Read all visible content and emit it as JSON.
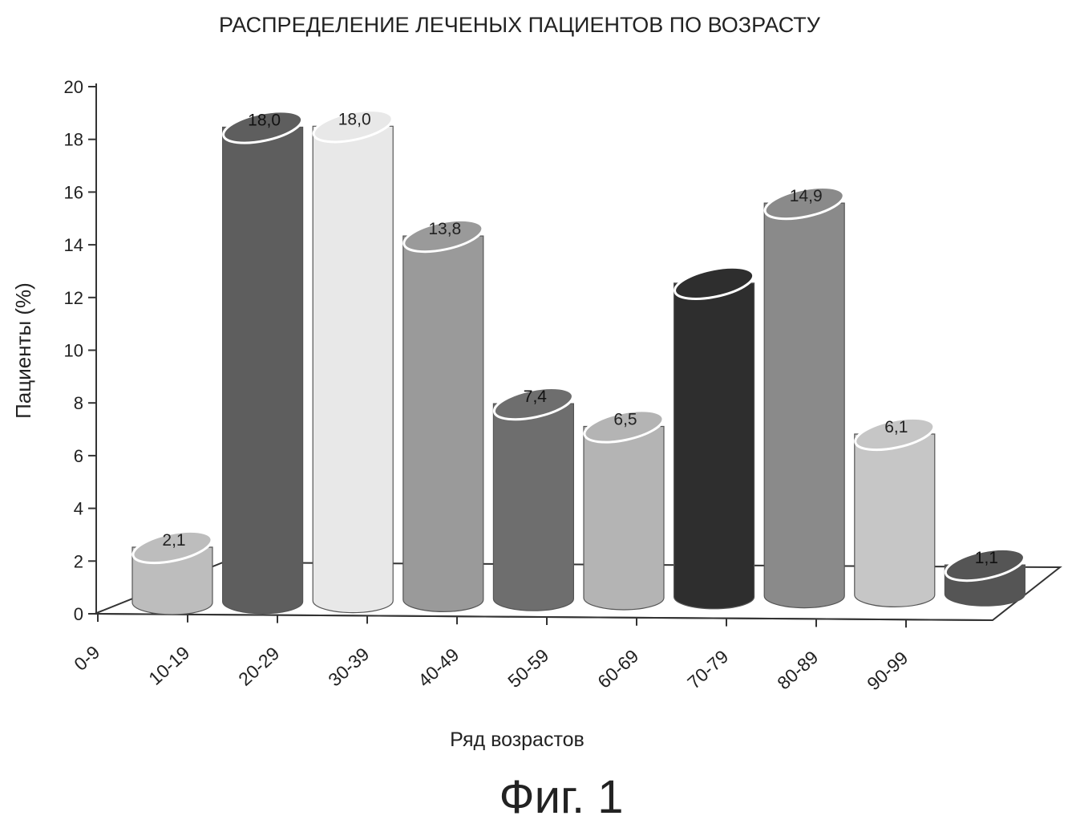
{
  "chart_data": {
    "type": "bar",
    "style": "3d-cylinder",
    "title": "РАСПРЕДЕЛЕНИЕ ЛЕЧЕНЫХ ПАЦИЕНТОВ ПО ВОЗРАСТУ",
    "xlabel": "Ряд возрастов",
    "ylabel": "Пациенты (%)",
    "ylim": [
      0,
      20
    ],
    "yticks": [
      0,
      2,
      4,
      6,
      8,
      10,
      12,
      14,
      16,
      18,
      20
    ],
    "categories": [
      "0-9",
      "10-19",
      "20-29",
      "30-39",
      "40-49",
      "50-59",
      "60-69",
      "70-79",
      "80-89",
      "90-99"
    ],
    "values": [
      2.1,
      18.0,
      18.0,
      13.8,
      7.4,
      6.5,
      11.9,
      14.9,
      6.1,
      1.1
    ],
    "value_labels": [
      "2,1",
      "18,0",
      "18,0",
      "13,8",
      "7,4",
      "6,5",
      "",
      "14,9",
      "6,1",
      "1,1"
    ],
    "bar_colors": [
      "#bdbdbd",
      "#5e5e5e",
      "#e8e8e8",
      "#9a9a9a",
      "#6e6e6e",
      "#b4b4b4",
      "#2e2e2e",
      "#8a8a8a",
      "#c6c6c6",
      "#555555"
    ],
    "grid": false,
    "legend": "none"
  },
  "caption": "Фиг. 1"
}
